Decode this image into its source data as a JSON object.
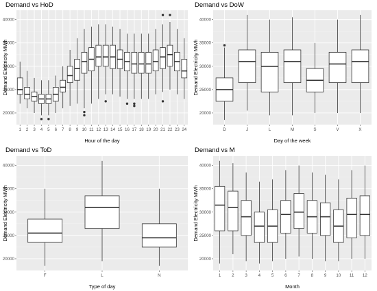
{
  "chart_data": [
    {
      "type": "box",
      "title": "Demand vs HoD",
      "xlabel": "Hour of the day",
      "ylabel": "Demand Electricity MWh",
      "ylim": [
        17500,
        42000
      ],
      "yticks": [
        20000,
        25000,
        30000,
        35000,
        40000
      ],
      "categories": [
        "1",
        "2",
        "3",
        "4",
        "5",
        "6",
        "7",
        "8",
        "9",
        "10",
        "11",
        "12",
        "13",
        "14",
        "15",
        "16",
        "17",
        "18",
        "19",
        "20",
        "21",
        "22",
        "23",
        "24"
      ],
      "boxes": [
        {
          "low": 22000,
          "q1": 24000,
          "median": 25000,
          "q3": 27500,
          "high": 31000,
          "outliers": []
        },
        {
          "low": 21000,
          "q1": 23000,
          "median": 24000,
          "q3": 25500,
          "high": 29000,
          "outliers": []
        },
        {
          "low": 20000,
          "q1": 22500,
          "median": 23500,
          "q3": 24500,
          "high": 27500,
          "outliers": []
        },
        {
          "low": 19500,
          "q1": 22000,
          "median": 23000,
          "q3": 24000,
          "high": 27000,
          "outliers": [
            18700
          ]
        },
        {
          "low": 19500,
          "q1": 22000,
          "median": 23000,
          "q3": 24000,
          "high": 27000,
          "outliers": [
            18700
          ]
        },
        {
          "low": 20000,
          "q1": 22500,
          "median": 24000,
          "q3": 25500,
          "high": 28000,
          "outliers": []
        },
        {
          "low": 21000,
          "q1": 24500,
          "median": 25500,
          "q3": 27000,
          "high": 30000,
          "outliers": []
        },
        {
          "low": 21500,
          "q1": 26500,
          "median": 28000,
          "q3": 30000,
          "high": 33500,
          "outliers": []
        },
        {
          "low": 22000,
          "q1": 27000,
          "median": 29500,
          "q3": 31500,
          "high": 36000,
          "outliers": []
        },
        {
          "low": 21000,
          "q1": 28500,
          "median": 31000,
          "q3": 33000,
          "high": 38000,
          "outliers": [
            19500,
            20200
          ]
        },
        {
          "low": 22000,
          "q1": 29000,
          "median": 31500,
          "q3": 34000,
          "high": 38500,
          "outliers": []
        },
        {
          "low": 23000,
          "q1": 30000,
          "median": 32000,
          "q3": 34500,
          "high": 39000,
          "outliers": []
        },
        {
          "low": 24000,
          "q1": 30000,
          "median": 32000,
          "q3": 34500,
          "high": 39000,
          "outliers": [
            22500
          ]
        },
        {
          "low": 24000,
          "q1": 29500,
          "median": 32000,
          "q3": 34500,
          "high": 38500,
          "outliers": []
        },
        {
          "low": 23500,
          "q1": 29500,
          "median": 31500,
          "q3": 33500,
          "high": 38000,
          "outliers": []
        },
        {
          "low": 23000,
          "q1": 29000,
          "median": 31000,
          "q3": 33000,
          "high": 37000,
          "outliers": [
            22000
          ]
        },
        {
          "low": 23000,
          "q1": 28500,
          "median": 30500,
          "q3": 33000,
          "high": 37000,
          "outliers": [
            21500,
            22000
          ]
        },
        {
          "low": 23000,
          "q1": 28500,
          "median": 30500,
          "q3": 33000,
          "high": 37000,
          "outliers": []
        },
        {
          "low": 23000,
          "q1": 28500,
          "median": 30500,
          "q3": 33000,
          "high": 37000,
          "outliers": []
        },
        {
          "low": 24000,
          "q1": 29000,
          "median": 31000,
          "q3": 33500,
          "high": 38000,
          "outliers": []
        },
        {
          "low": 24500,
          "q1": 29500,
          "median": 32000,
          "q3": 34000,
          "high": 39000,
          "outliers": [
            22500,
            41000
          ]
        },
        {
          "low": 25000,
          "q1": 30000,
          "median": 32500,
          "q3": 34500,
          "high": 39500,
          "outliers": [
            41000
          ]
        },
        {
          "low": 24000,
          "q1": 29000,
          "median": 31000,
          "q3": 33000,
          "high": 38000,
          "outliers": []
        },
        {
          "low": 23000,
          "q1": 27500,
          "median": 29000,
          "q3": 31500,
          "high": 36000,
          "outliers": []
        }
      ]
    },
    {
      "type": "box",
      "title": "Demand vs DoW",
      "xlabel": "Day of the week",
      "ylabel": "Demand Electricity MWh",
      "ylim": [
        17500,
        42000
      ],
      "yticks": [
        20000,
        25000,
        30000,
        35000,
        40000
      ],
      "categories": [
        "D",
        "J",
        "L",
        "M",
        "S",
        "V",
        "X"
      ],
      "boxes": [
        {
          "low": 18500,
          "q1": 22500,
          "median": 25000,
          "q3": 27500,
          "high": 34000,
          "outliers": [
            34500
          ]
        },
        {
          "low": 20500,
          "q1": 26500,
          "median": 31000,
          "q3": 33500,
          "high": 41000,
          "outliers": []
        },
        {
          "low": 19500,
          "q1": 24500,
          "median": 30000,
          "q3": 33000,
          "high": 40000,
          "outliers": []
        },
        {
          "low": 19500,
          "q1": 26500,
          "median": 31000,
          "q3": 33500,
          "high": 40500,
          "outliers": []
        },
        {
          "low": 20000,
          "q1": 24500,
          "median": 27000,
          "q3": 29500,
          "high": 35000,
          "outliers": []
        },
        {
          "low": 20000,
          "q1": 26500,
          "median": 30500,
          "q3": 33000,
          "high": 40000,
          "outliers": []
        },
        {
          "low": 20000,
          "q1": 26500,
          "median": 31000,
          "q3": 33500,
          "high": 41000,
          "outliers": []
        }
      ]
    },
    {
      "type": "box",
      "title": "Demand vs ToD",
      "xlabel": "Type of day",
      "ylabel": "Demand Electricity MWh",
      "ylim": [
        17500,
        42000
      ],
      "yticks": [
        20000,
        25000,
        30000,
        35000,
        40000
      ],
      "categories": [
        "F",
        "L",
        "N"
      ],
      "boxes": [
        {
          "low": 18500,
          "q1": 23500,
          "median": 25500,
          "q3": 28500,
          "high": 35000,
          "outliers": []
        },
        {
          "low": 19500,
          "q1": 26500,
          "median": 31000,
          "q3": 33500,
          "high": 41000,
          "outliers": []
        },
        {
          "low": 18500,
          "q1": 22500,
          "median": 24500,
          "q3": 27500,
          "high": 35000,
          "outliers": []
        }
      ]
    },
    {
      "type": "box",
      "title": "Demand vs M",
      "xlabel": "Month",
      "ylabel": "Demand Electricity MWh",
      "ylim": [
        17500,
        42000
      ],
      "yticks": [
        20000,
        25000,
        30000,
        35000,
        40000
      ],
      "categories": [
        "1",
        "2",
        "3",
        "4",
        "5",
        "6",
        "7",
        "8",
        "9",
        "10",
        "11",
        "12"
      ],
      "boxes": [
        {
          "low": 19000,
          "q1": 26000,
          "median": 31500,
          "q3": 35500,
          "high": 41000,
          "outliers": []
        },
        {
          "low": 21000,
          "q1": 26000,
          "median": 31000,
          "q3": 34500,
          "high": 40500,
          "outliers": []
        },
        {
          "low": 19500,
          "q1": 25000,
          "median": 29000,
          "q3": 32500,
          "high": 38500,
          "outliers": []
        },
        {
          "low": 19000,
          "q1": 23500,
          "median": 27000,
          "q3": 30000,
          "high": 36500,
          "outliers": []
        },
        {
          "low": 19500,
          "q1": 23500,
          "median": 27000,
          "q3": 30500,
          "high": 37000,
          "outliers": []
        },
        {
          "low": 20000,
          "q1": 25500,
          "median": 29500,
          "q3": 32500,
          "high": 39000,
          "outliers": []
        },
        {
          "low": 20500,
          "q1": 26500,
          "median": 30000,
          "q3": 34000,
          "high": 40000,
          "outliers": []
        },
        {
          "low": 20000,
          "q1": 25500,
          "median": 29000,
          "q3": 32500,
          "high": 38500,
          "outliers": []
        },
        {
          "low": 19500,
          "q1": 25000,
          "median": 29000,
          "q3": 32000,
          "high": 38000,
          "outliers": []
        },
        {
          "low": 19500,
          "q1": 23500,
          "median": 27000,
          "q3": 30500,
          "high": 37000,
          "outliers": []
        },
        {
          "low": 20000,
          "q1": 24500,
          "median": 29500,
          "q3": 33000,
          "high": 39000,
          "outliers": []
        },
        {
          "low": 20000,
          "q1": 25000,
          "median": 29500,
          "q3": 33500,
          "high": 40000,
          "outliers": []
        }
      ]
    }
  ]
}
